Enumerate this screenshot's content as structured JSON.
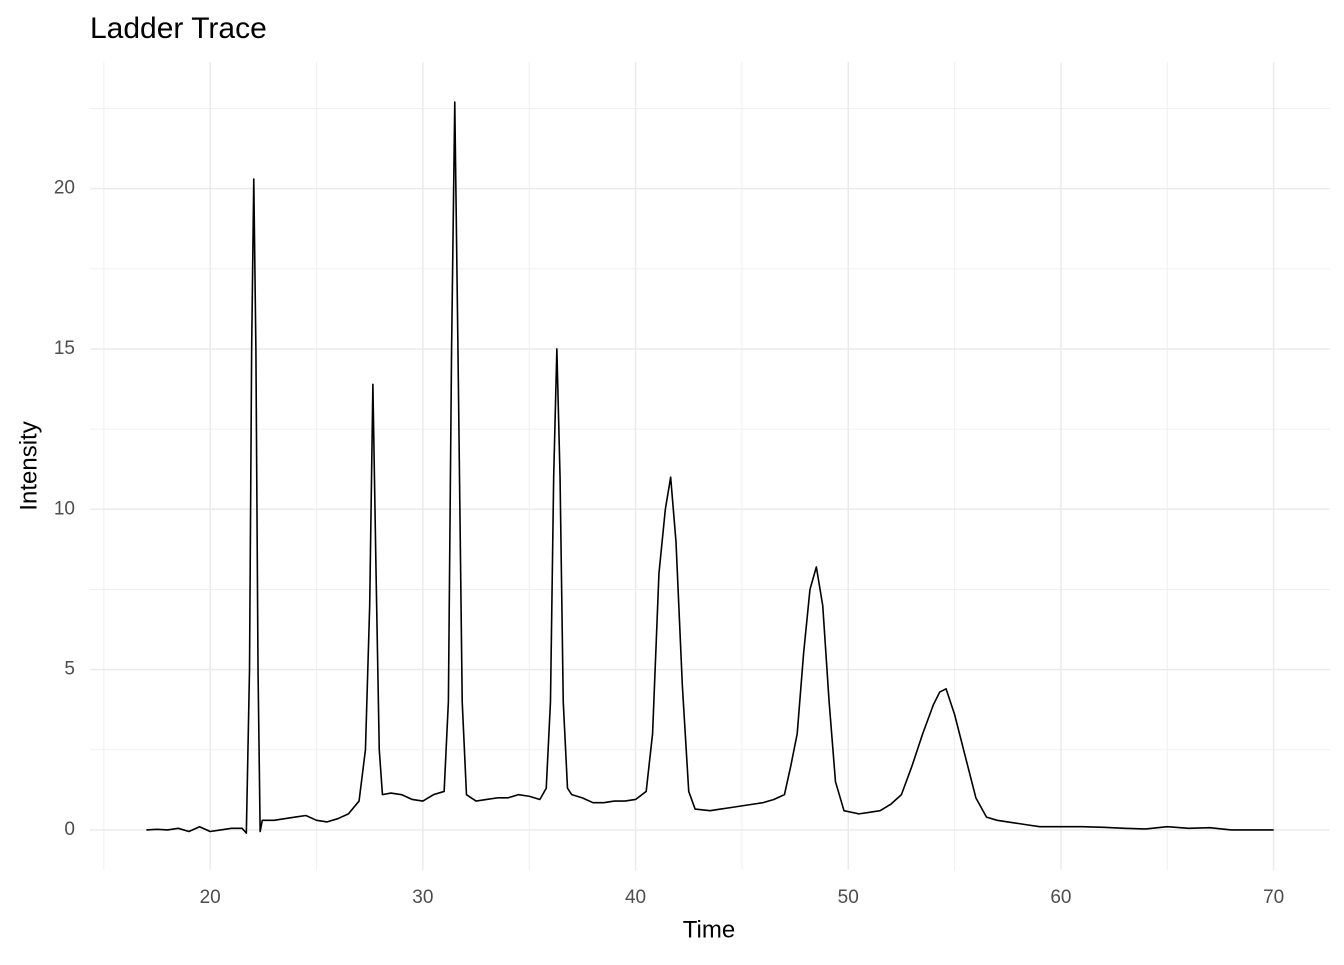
{
  "chart_data": {
    "type": "line",
    "title": "Ladder Trace",
    "x_label": "Time",
    "y_label": "Intensity",
    "x": [
      17,
      17.5,
      18,
      18.5,
      19,
      19.5,
      20,
      20.5,
      21,
      21.5,
      21.7,
      21.85,
      21.95,
      22.05,
      22.15,
      22.25,
      22.35,
      22.45,
      23,
      23.5,
      24,
      24.5,
      25,
      25.5,
      26,
      26.5,
      27,
      27.3,
      27.5,
      27.65,
      27.8,
      27.95,
      28.1,
      28.5,
      29,
      29.5,
      30,
      30.5,
      31,
      31.2,
      31.35,
      31.5,
      31.65,
      31.85,
      32.05,
      32.5,
      33,
      33.5,
      34,
      34.5,
      35,
      35.5,
      35.8,
      36,
      36.15,
      36.3,
      36.45,
      36.6,
      36.8,
      37,
      37.5,
      38,
      38.5,
      39,
      39.5,
      40,
      40.5,
      40.8,
      41.1,
      41.4,
      41.65,
      41.9,
      42.2,
      42.5,
      42.8,
      43.5,
      44,
      44.5,
      45,
      45.5,
      46,
      46.5,
      47,
      47.3,
      47.6,
      47.9,
      48.2,
      48.5,
      48.8,
      49.1,
      49.4,
      49.8,
      50.5,
      51,
      51.5,
      52,
      52.5,
      53,
      53.5,
      54,
      54.3,
      54.6,
      55,
      55.5,
      56,
      56.5,
      57,
      57.5,
      58,
      58.5,
      59,
      59.5,
      60,
      61,
      62,
      63,
      64,
      65,
      66,
      67,
      68,
      69,
      70
    ],
    "series": [
      {
        "color": "#000000",
        "values": [
          0,
          0.02,
          0,
          0.05,
          -0.05,
          0.1,
          -0.05,
          0,
          0.05,
          0.05,
          -0.1,
          5,
          15,
          20.3,
          15,
          5,
          -0.05,
          0.3,
          0.3,
          0.35,
          0.4,
          0.45,
          0.3,
          0.25,
          0.35,
          0.5,
          0.9,
          2.5,
          7,
          13.9,
          8,
          2.5,
          1.1,
          1.15,
          1.1,
          0.95,
          0.9,
          1.1,
          1.2,
          4,
          15,
          22.7,
          15,
          4,
          1.1,
          0.9,
          0.95,
          1,
          1,
          1.1,
          1.05,
          0.95,
          1.3,
          4,
          11,
          15,
          11,
          4,
          1.3,
          1.1,
          1,
          0.85,
          0.85,
          0.9,
          0.9,
          0.95,
          1.2,
          3,
          8,
          10,
          11,
          9,
          4.5,
          1.2,
          0.65,
          0.6,
          0.65,
          0.7,
          0.75,
          0.8,
          0.85,
          0.95,
          1.1,
          2,
          3,
          5.5,
          7.5,
          8.2,
          7,
          4,
          1.5,
          0.6,
          0.5,
          0.55,
          0.6,
          0.8,
          1.1,
          2,
          3,
          3.9,
          4.3,
          4.4,
          3.6,
          2.3,
          1,
          0.4,
          0.3,
          0.25,
          0.2,
          0.15,
          0.1,
          0.1,
          0.1,
          0.1,
          0.08,
          0.05,
          0.03,
          0.1,
          0.05,
          0.07,
          0,
          0,
          0
        ]
      }
    ],
    "xlim": [
      14.35,
      72.65
    ],
    "ylim": [
      -1.25,
      23.95
    ],
    "xticks": [
      20,
      30,
      40,
      50,
      60,
      70
    ],
    "yticks": [
      0,
      5,
      10,
      15,
      20
    ],
    "minor_xticks": [
      15,
      25,
      35,
      45,
      55,
      65
    ],
    "minor_yticks": [
      2.5,
      7.5,
      12.5,
      17.5,
      22.5
    ],
    "grid": true
  }
}
